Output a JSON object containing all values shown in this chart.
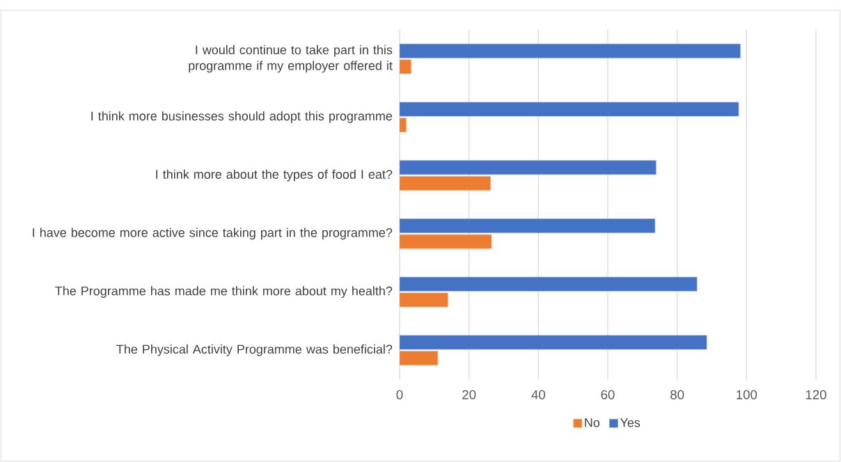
{
  "chart_data": {
    "type": "bar",
    "orientation": "horizontal",
    "categories": [
      "I would continue to take part in this programme if my employer offered it",
      "I think more businesses should adopt this programme",
      "I think more about the types of food I eat?",
      "I have become more active since taking part in the programme?",
      "The Programme has made me think more about my health?",
      "The Physical Activity Programme was beneficial?"
    ],
    "series": [
      {
        "name": "No",
        "color": "#ed7d31",
        "values": [
          3.3,
          1.9,
          26.2,
          26.5,
          13.9,
          11.0
        ]
      },
      {
        "name": "Yes",
        "color": "#4472c4",
        "values": [
          98.2,
          97.7,
          73.9,
          73.6,
          85.7,
          88.5
        ]
      }
    ],
    "xlim": [
      0,
      120
    ],
    "xticks": [
      0,
      20,
      40,
      60,
      80,
      100,
      120
    ],
    "grid": "x",
    "legend": "bottom"
  }
}
